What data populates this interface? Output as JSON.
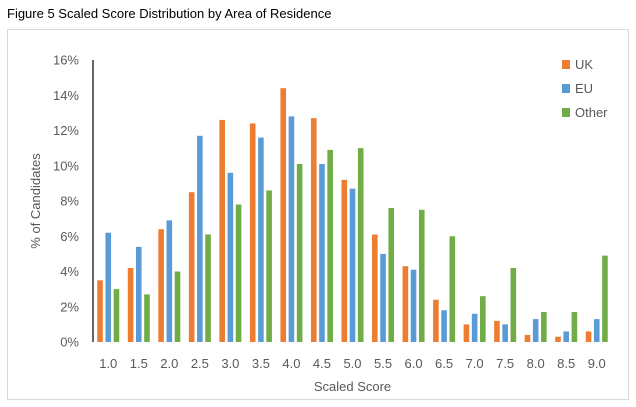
{
  "figure_title": "Figure 5 Scaled Score Distribution by Area of Residence",
  "chart_data": {
    "type": "bar",
    "title": "",
    "xlabel": "Scaled Score",
    "ylabel": "% of Candidates",
    "ylim": [
      0,
      16
    ],
    "y_ticks": [
      "0%",
      "2%",
      "4%",
      "6%",
      "8%",
      "10%",
      "12%",
      "14%",
      "16%"
    ],
    "categories": [
      "1.0",
      "1.5",
      "2.0",
      "2.5",
      "3.0",
      "3.5",
      "4.0",
      "4.5",
      "5.0",
      "5.5",
      "6.0",
      "6.5",
      "7.0",
      "7.5",
      "8.0",
      "8.5",
      "9.0"
    ],
    "series": [
      {
        "name": "UK",
        "color": "#ed7d31",
        "values": [
          3.5,
          4.2,
          6.4,
          8.5,
          12.6,
          12.4,
          14.4,
          12.7,
          9.2,
          6.1,
          4.3,
          2.4,
          1.0,
          1.2,
          0.4,
          0.3,
          0.6
        ]
      },
      {
        "name": "EU",
        "color": "#5b9bd5",
        "values": [
          6.2,
          5.4,
          6.9,
          11.7,
          9.6,
          11.6,
          12.8,
          10.1,
          8.7,
          5.0,
          4.1,
          1.8,
          1.6,
          1.0,
          1.3,
          0.6,
          1.3
        ]
      },
      {
        "name": "Other",
        "color": "#70ad47",
        "values": [
          3.0,
          2.7,
          4.0,
          6.1,
          7.8,
          8.6,
          10.1,
          10.9,
          11.0,
          7.6,
          7.5,
          6.0,
          2.6,
          4.2,
          1.7,
          1.7,
          4.9
        ]
      }
    ],
    "grid": false,
    "legend_position": "top-right"
  }
}
